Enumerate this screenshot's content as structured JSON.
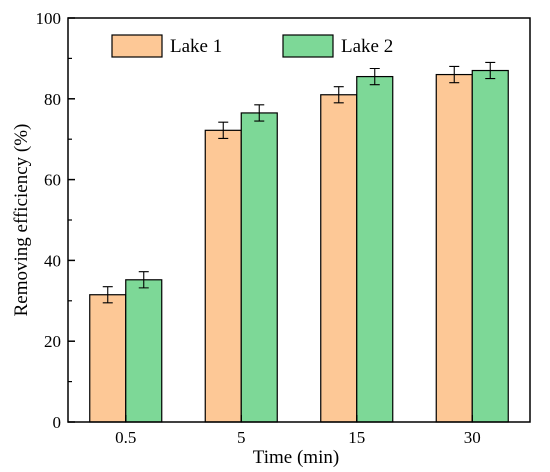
{
  "chart_data": {
    "type": "bar",
    "xlabel": "Time (min)",
    "ylabel": "Removing efficiency (%)",
    "categories": [
      "0.5",
      "5",
      "15",
      "30"
    ],
    "ylim": [
      0,
      100
    ],
    "yticks": [
      "0",
      "20",
      "40",
      "60",
      "80",
      "100"
    ],
    "legend_position": "top",
    "grid": false,
    "series": [
      {
        "name": "Lake 1",
        "color": "#FDC896",
        "values": [
          31.5,
          72.2,
          81.0,
          86.0
        ],
        "errors": [
          2.0,
          2.0,
          2.0,
          2.0
        ]
      },
      {
        "name": "Lake 2",
        "color": "#7DD897",
        "values": [
          35.2,
          76.5,
          85.5,
          87.0
        ],
        "errors": [
          2.0,
          2.0,
          2.0,
          2.0
        ]
      }
    ]
  }
}
